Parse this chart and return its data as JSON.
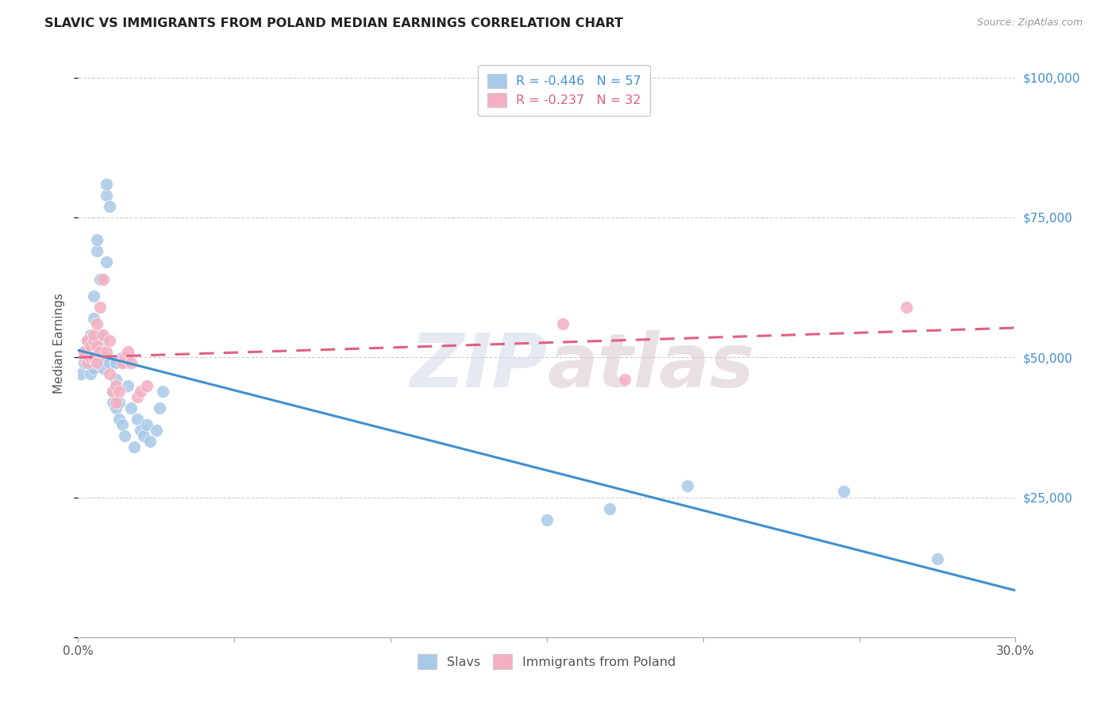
{
  "title": "SLAVIC VS IMMIGRANTS FROM POLAND MEDIAN EARNINGS CORRELATION CHART",
  "source": "Source: ZipAtlas.com",
  "ylabel": "Median Earnings",
  "legend_r1": "R = -0.446   N = 57",
  "legend_r2": "R = -0.237   N = 32",
  "legend_label1": "Slavs",
  "legend_label2": "Immigrants from Poland",
  "slavs_color": "#a8c8e8",
  "poland_color": "#f4b0c0",
  "trendline_slavs_color": "#4090d0",
  "trendline_poland_color": "#e06080",
  "watermark": "ZIPAtlas",
  "slavs_x": [
    0.001,
    0.002,
    0.002,
    0.003,
    0.003,
    0.003,
    0.004,
    0.004,
    0.004,
    0.004,
    0.005,
    0.005,
    0.005,
    0.005,
    0.006,
    0.006,
    0.006,
    0.006,
    0.007,
    0.007,
    0.007,
    0.007,
    0.008,
    0.008,
    0.008,
    0.009,
    0.009,
    0.009,
    0.01,
    0.01,
    0.011,
    0.011,
    0.012,
    0.012,
    0.012,
    0.013,
    0.013,
    0.014,
    0.014,
    0.015,
    0.015,
    0.016,
    0.017,
    0.018,
    0.019,
    0.02,
    0.021,
    0.022,
    0.023,
    0.025,
    0.026,
    0.027,
    0.15,
    0.17,
    0.195,
    0.245,
    0.275
  ],
  "slavs_y": [
    47000,
    49000,
    51000,
    50000,
    53000,
    51000,
    52000,
    49000,
    47000,
    54000,
    57000,
    61000,
    50000,
    48000,
    69000,
    71000,
    52000,
    49000,
    64000,
    54000,
    51000,
    49000,
    53000,
    50000,
    48000,
    79000,
    81000,
    67000,
    77000,
    49000,
    44000,
    42000,
    49000,
    46000,
    41000,
    42000,
    39000,
    50000,
    38000,
    36000,
    49000,
    45000,
    41000,
    34000,
    39000,
    37000,
    36000,
    38000,
    35000,
    37000,
    41000,
    44000,
    21000,
    23000,
    27000,
    26000,
    14000
  ],
  "poland_x": [
    0.002,
    0.003,
    0.003,
    0.004,
    0.004,
    0.005,
    0.005,
    0.005,
    0.006,
    0.006,
    0.006,
    0.007,
    0.007,
    0.008,
    0.008,
    0.009,
    0.01,
    0.01,
    0.011,
    0.012,
    0.012,
    0.013,
    0.014,
    0.015,
    0.016,
    0.017,
    0.019,
    0.02,
    0.022,
    0.155,
    0.175,
    0.265
  ],
  "poland_y": [
    51000,
    53000,
    49000,
    52000,
    50000,
    53000,
    50000,
    54000,
    56000,
    52000,
    49000,
    51000,
    59000,
    64000,
    54000,
    51000,
    53000,
    47000,
    44000,
    45000,
    42000,
    44000,
    49000,
    50000,
    51000,
    49000,
    43000,
    44000,
    45000,
    56000,
    46000,
    59000
  ],
  "xmin": 0.0,
  "xmax": 0.3,
  "ymin": 0,
  "ymax": 105000,
  "xtick_positions": [
    0.0,
    0.05,
    0.1,
    0.15,
    0.2,
    0.25,
    0.3
  ],
  "xtick_labels": [
    "0.0%",
    "",
    "",
    "",
    "",
    "",
    "30.0%"
  ],
  "ytick_positions": [
    0,
    25000,
    50000,
    75000,
    100000
  ],
  "ytick_labels_right": [
    "",
    "$25,000",
    "$50,000",
    "$75,000",
    "$100,000"
  ],
  "grid_color": "#cccccc",
  "background_color": "#ffffff"
}
